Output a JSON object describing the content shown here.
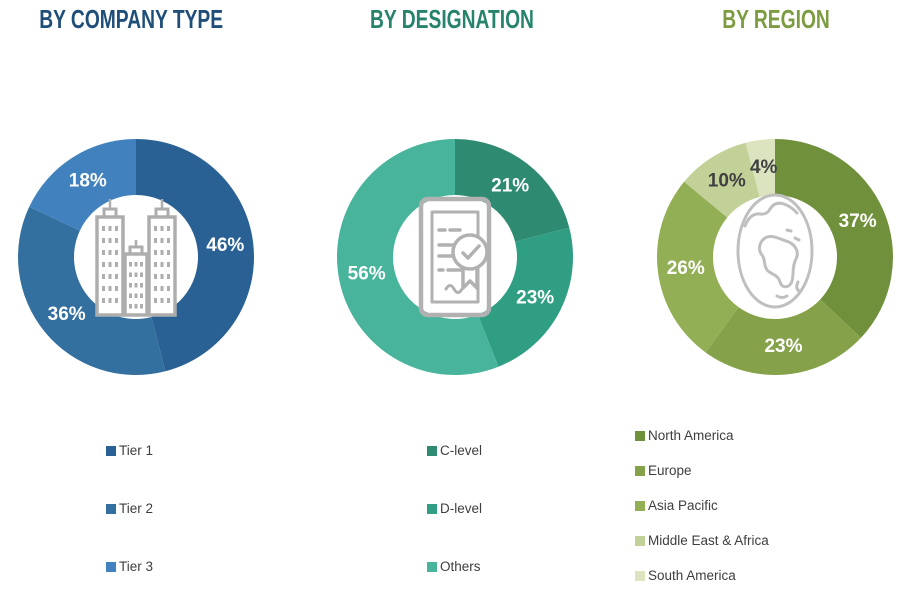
{
  "background": "#FFFFFF",
  "chart_data": [
    {
      "type": "pie",
      "variant": "donut",
      "title": "BY COMPANY TYPE",
      "title_color": "#1F4E79",
      "center_icon": "buildings-icon",
      "legend_position": "bottom",
      "slices": [
        {
          "label": "Tier 1",
          "value": 46,
          "display": "46%",
          "color": "#2A6194",
          "label_color": "#FFFFFF"
        },
        {
          "label": "Tier 2",
          "value": 36,
          "display": "36%",
          "color": "#33709F",
          "label_color": "#FFFFFF"
        },
        {
          "label": "Tier 3",
          "value": 18,
          "display": "18%",
          "color": "#4181BE",
          "label_color": "#FFFFFF"
        }
      ]
    },
    {
      "type": "pie",
      "variant": "donut",
      "title": "BY DESIGNATION",
      "title_color": "#27836C",
      "center_icon": "certificate-icon",
      "legend_position": "bottom",
      "slices": [
        {
          "label": "C-level",
          "value": 21,
          "display": "21%",
          "color": "#2E8B71",
          "label_color": "#FFFFFF"
        },
        {
          "label": "D-level",
          "value": 23,
          "display": "23%",
          "color": "#2F9E83",
          "label_color": "#FFFFFF"
        },
        {
          "label": "Others",
          "value": 56,
          "display": "56%",
          "color": "#47B49B",
          "label_color": "#FFFFFF"
        }
      ]
    },
    {
      "type": "pie",
      "variant": "donut",
      "title": "BY REGION",
      "title_color": "#7D9C42",
      "center_icon": "globe-icon",
      "legend_position": "bottom",
      "slices": [
        {
          "label": "North America",
          "value": 37,
          "display": "37%",
          "color": "#71903C",
          "label_color": "#FFFFFF"
        },
        {
          "label": "Europe",
          "value": 23,
          "display": "23%",
          "color": "#85A24A",
          "label_color": "#FFFFFF"
        },
        {
          "label": "Asia Pacific",
          "value": 26,
          "display": "26%",
          "color": "#93AF55",
          "label_color": "#FFFFFF"
        },
        {
          "label": "Middle East & Africa",
          "value": 10,
          "display": "10%",
          "color": "#C1D197",
          "label_color": "#404040"
        },
        {
          "label": "South America",
          "value": 4,
          "display": "4%",
          "color": "#DBE4BE",
          "label_color": "#404040"
        }
      ]
    }
  ]
}
